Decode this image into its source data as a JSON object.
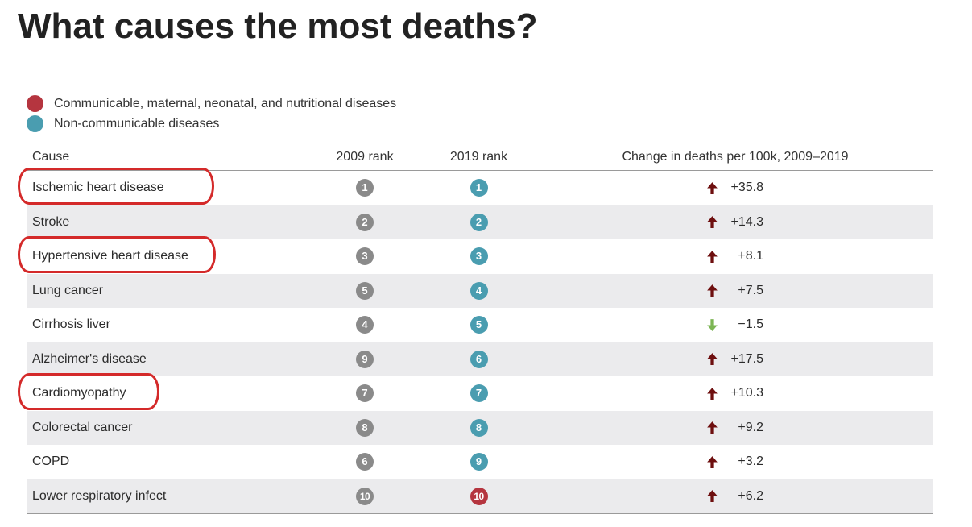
{
  "title": "What causes the most deaths?",
  "legend": [
    {
      "label": "Communicable, maternal, neonatal, and nutritional diseases",
      "color": "#b5353f"
    },
    {
      "label": "Non-communicable diseases",
      "color": "#4a9db0"
    }
  ],
  "colors": {
    "rank2009": "#8a8a8a",
    "communicable": "#b5353f",
    "noncommunicable": "#4a9db0",
    "increase": "#6e0f0f",
    "decrease": "#7cb554",
    "highlight": "#d42a2a"
  },
  "chart_data": {
    "type": "table",
    "title": "What causes the most deaths?",
    "columns": [
      "Cause",
      "2009 rank",
      "2019 rank",
      "Change in deaths per 100k, 2009–2019"
    ],
    "rows": [
      {
        "cause": "Ischemic heart disease",
        "rank_2009": 1,
        "rank_2019": 1,
        "category_2019": "noncommunicable",
        "change": "+35.8",
        "direction": "up",
        "highlighted": true
      },
      {
        "cause": "Stroke",
        "rank_2009": 2,
        "rank_2019": 2,
        "category_2019": "noncommunicable",
        "change": "+14.3",
        "direction": "up",
        "highlighted": false
      },
      {
        "cause": "Hypertensive heart disease",
        "rank_2009": 3,
        "rank_2019": 3,
        "category_2019": "noncommunicable",
        "change": "+8.1",
        "direction": "up",
        "highlighted": true
      },
      {
        "cause": "Lung cancer",
        "rank_2009": 5,
        "rank_2019": 4,
        "category_2019": "noncommunicable",
        "change": "+7.5",
        "direction": "up",
        "highlighted": false
      },
      {
        "cause": "Cirrhosis liver",
        "rank_2009": 4,
        "rank_2019": 5,
        "category_2019": "noncommunicable",
        "change": "−1.5",
        "direction": "down",
        "highlighted": false
      },
      {
        "cause": "Alzheimer's disease",
        "rank_2009": 9,
        "rank_2019": 6,
        "category_2019": "noncommunicable",
        "change": "+17.5",
        "direction": "up",
        "highlighted": false
      },
      {
        "cause": "Cardiomyopathy",
        "rank_2009": 7,
        "rank_2019": 7,
        "category_2019": "noncommunicable",
        "change": "+10.3",
        "direction": "up",
        "highlighted": true
      },
      {
        "cause": "Colorectal cancer",
        "rank_2009": 8,
        "rank_2019": 8,
        "category_2019": "noncommunicable",
        "change": "+9.2",
        "direction": "up",
        "highlighted": false
      },
      {
        "cause": "COPD",
        "rank_2009": 6,
        "rank_2019": 9,
        "category_2019": "noncommunicable",
        "change": "+3.2",
        "direction": "up",
        "highlighted": false
      },
      {
        "cause": "Lower respiratory infect",
        "rank_2009": 10,
        "rank_2019": 10,
        "category_2019": "communicable",
        "change": "+6.2",
        "direction": "up",
        "highlighted": false
      }
    ]
  }
}
